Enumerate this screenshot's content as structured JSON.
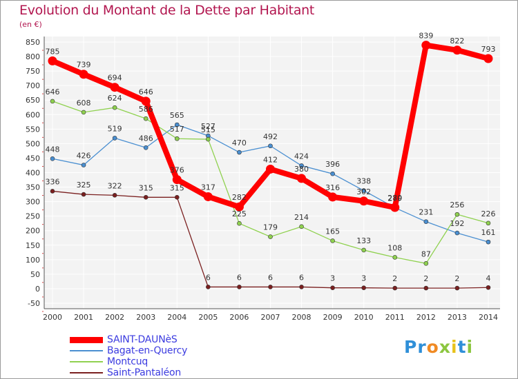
{
  "title": "Evolution du Montant de la Dette par Habitant",
  "unit": "(en €)",
  "logo": {
    "letters": [
      {
        "ch": "P",
        "color": "#2f8fd8"
      },
      {
        "ch": "r",
        "color": "#2f8fd8"
      },
      {
        "ch": "o",
        "color": "#f08a24"
      },
      {
        "ch": "x",
        "color": "#8cc63f"
      },
      {
        "ch": "i",
        "color": "#e8c21a"
      },
      {
        "ch": "t",
        "color": "#2f8fd8"
      },
      {
        "ch": "i",
        "color": "#8cc63f"
      }
    ]
  },
  "chart_data": {
    "type": "line",
    "title": "Evolution du Montant de la Dette par Habitant",
    "ylabel": "(en €)",
    "xlabel": "",
    "categories": [
      "2000",
      "2001",
      "2002",
      "2003",
      "2004",
      "2005",
      "2006",
      "2007",
      "2008",
      "2009",
      "2010",
      "2011",
      "2012",
      "2013",
      "2014"
    ],
    "ylim": [
      -50,
      850
    ],
    "yticks": [
      -50,
      0,
      50,
      100,
      150,
      200,
      250,
      300,
      350,
      400,
      450,
      500,
      550,
      600,
      650,
      700,
      750,
      800,
      850
    ],
    "grid": true,
    "legend_position": "bottom-left",
    "series": [
      {
        "name": "SAINT-DAUNèS",
        "color": "#ff0000",
        "values": [
          785,
          739,
          694,
          646,
          376,
          317,
          282,
          412,
          380,
          316,
          302,
          280,
          839,
          822,
          793
        ]
      },
      {
        "name": "Bagat-en-Quercy",
        "color": "#4a8fd1",
        "values": [
          448,
          426,
          519,
          486,
          565,
          527,
          470,
          492,
          424,
          396,
          338,
          279,
          231,
          192,
          161
        ]
      },
      {
        "name": "Montcuq",
        "color": "#8fd14f",
        "values": [
          646,
          608,
          624,
          586,
          517,
          515,
          225,
          179,
          214,
          165,
          133,
          108,
          87,
          256,
          226
        ]
      },
      {
        "name": "Saint-Pantaléon",
        "color": "#7a1f1f",
        "values": [
          336,
          325,
          322,
          315,
          315,
          6,
          6,
          6,
          6,
          3,
          3,
          2,
          2,
          2,
          4
        ]
      }
    ]
  }
}
